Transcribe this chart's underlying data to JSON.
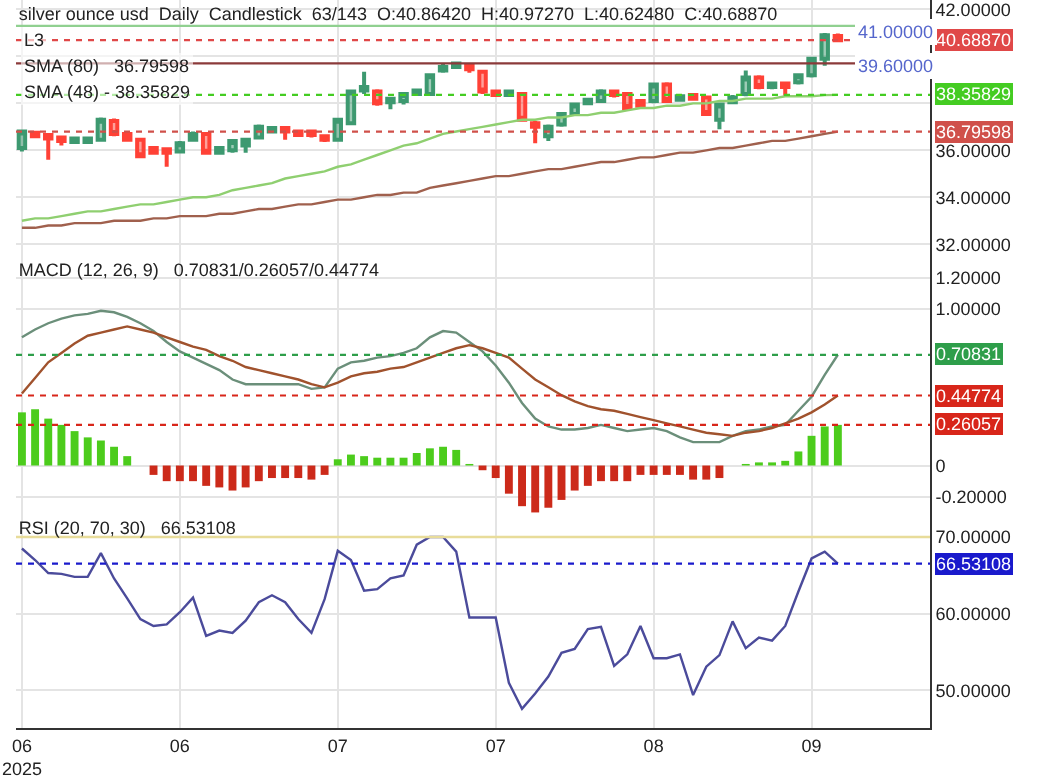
{
  "chart_data": [
    {
      "type": "candlestick",
      "title": "silver ounce usd  Daily  Candlestick  63/143  O:40.86420  H:40.97270  L:40.62480  C:40.68870",
      "categories": [
        null,
        null,
        null,
        null,
        null,
        null,
        null,
        null,
        null,
        null,
        null,
        null,
        null,
        null,
        null,
        null,
        null,
        null,
        null,
        null,
        null,
        null,
        null,
        null,
        null,
        null,
        null,
        null,
        null,
        null,
        null,
        null,
        null,
        null,
        null,
        null,
        null,
        null,
        null,
        null,
        null,
        null,
        null,
        null,
        null,
        null,
        null,
        null,
        null,
        null,
        null,
        null,
        null,
        null,
        null,
        null,
        null,
        null,
        null,
        null,
        null,
        null,
        null
      ],
      "annotations": [
        "L3",
        "SMA (80)   36.79598",
        "SMA (48) - 38.35829",
        {
          "text": "41.00000",
          "y": 41.0
        },
        {
          "text": "39.60000",
          "y": 39.6
        }
      ],
      "series": [
        {
          "ohlc": [
            [
              36.1,
              36.85,
              35.95,
              36.8
            ],
            [
              36.75,
              36.8,
              36.6,
              36.6
            ],
            [
              36.65,
              36.7,
              35.6,
              36.5
            ],
            [
              36.55,
              36.6,
              36.2,
              36.4
            ],
            [
              36.35,
              36.55,
              36.3,
              36.5
            ],
            [
              36.35,
              36.55,
              36.3,
              36.5
            ],
            [
              36.45,
              37.4,
              36.4,
              37.3
            ],
            [
              37.25,
              37.35,
              36.6,
              36.7
            ],
            [
              36.7,
              36.75,
              36.4,
              36.45
            ],
            [
              36.45,
              36.5,
              35.7,
              35.75
            ],
            [
              36.1,
              36.15,
              35.85,
              35.9
            ],
            [
              36.05,
              36.1,
              35.3,
              35.9
            ],
            [
              35.95,
              36.4,
              35.9,
              36.3
            ],
            [
              36.45,
              36.8,
              36.4,
              36.7
            ],
            [
              36.7,
              36.75,
              35.85,
              35.9
            ],
            [
              35.9,
              36.15,
              35.85,
              36.1
            ],
            [
              36.0,
              36.45,
              35.9,
              36.4
            ],
            [
              36.2,
              36.5,
              35.9,
              36.45
            ],
            [
              36.55,
              37.1,
              36.5,
              37.0
            ],
            [
              36.8,
              36.95,
              36.75,
              36.95
            ],
            [
              36.95,
              37.0,
              36.45,
              36.8
            ],
            [
              36.8,
              36.85,
              36.6,
              36.65
            ],
            [
              36.8,
              36.85,
              36.55,
              36.65
            ],
            [
              36.6,
              36.65,
              36.35,
              36.45
            ],
            [
              36.45,
              37.35,
              36.4,
              37.3
            ],
            [
              37.15,
              38.55,
              37.1,
              38.5
            ],
            [
              38.55,
              39.35,
              38.4,
              38.7
            ],
            [
              38.5,
              38.6,
              37.9,
              38.0
            ],
            [
              38.05,
              38.2,
              37.75,
              38.2
            ],
            [
              38.1,
              38.45,
              37.95,
              38.4
            ],
            [
              38.4,
              38.55,
              38.35,
              38.55
            ],
            [
              38.4,
              39.25,
              38.35,
              39.2
            ],
            [
              39.4,
              39.7,
              39.3,
              39.55
            ],
            [
              39.55,
              39.75,
              39.5,
              39.7
            ],
            [
              39.6,
              39.65,
              39.3,
              39.45
            ],
            [
              39.35,
              39.4,
              38.4,
              38.5
            ],
            [
              38.5,
              38.55,
              38.3,
              38.35
            ],
            [
              38.35,
              38.5,
              38.3,
              38.5
            ],
            [
              38.4,
              38.45,
              37.25,
              37.3
            ],
            [
              37.15,
              37.25,
              36.3,
              37.0
            ],
            [
              36.6,
              37.1,
              36.4,
              37.0
            ],
            [
              37.1,
              37.6,
              37.0,
              37.55
            ],
            [
              37.55,
              38.0,
              37.5,
              37.95
            ],
            [
              38.0,
              38.2,
              37.95,
              38.15
            ],
            [
              38.1,
              38.6,
              38.05,
              38.5
            ],
            [
              38.5,
              38.55,
              38.25,
              38.35
            ],
            [
              38.4,
              38.45,
              37.75,
              37.8
            ],
            [
              38.1,
              38.15,
              37.85,
              37.9
            ],
            [
              38.1,
              38.85,
              38.0,
              38.8
            ],
            [
              38.8,
              38.9,
              38.05,
              38.1
            ],
            [
              38.15,
              38.3,
              38.1,
              38.3
            ],
            [
              38.35,
              38.4,
              38.2,
              38.2
            ],
            [
              38.25,
              38.3,
              37.5,
              37.55
            ],
            [
              37.3,
              38.0,
              36.9,
              37.95
            ],
            [
              38.05,
              38.35,
              38.0,
              38.25
            ],
            [
              38.4,
              39.4,
              38.3,
              39.1
            ],
            [
              39.1,
              39.2,
              38.6,
              38.7
            ],
            [
              38.7,
              38.9,
              38.6,
              38.85
            ],
            [
              38.85,
              38.9,
              38.3,
              38.7
            ],
            [
              38.9,
              39.25,
              38.8,
              39.2
            ],
            [
              39.2,
              39.95,
              39.1,
              39.9
            ],
            [
              39.9,
              41.0,
              39.6,
              40.9
            ],
            [
              40.8642,
              40.9727,
              40.6248,
              40.6887
            ]
          ]
        },
        {
          "type": "line",
          "color": "#8fcf70",
          "values": [
            33.0,
            33.1,
            33.1,
            33.2,
            33.3,
            33.4,
            33.4,
            33.5,
            33.6,
            33.7,
            33.7,
            33.8,
            33.9,
            34.0,
            34.0,
            34.1,
            34.3,
            34.4,
            34.5,
            34.6,
            34.8,
            34.9,
            35.0,
            35.1,
            35.3,
            35.4,
            35.6,
            35.8,
            36.0,
            36.2,
            36.3,
            36.5,
            36.7,
            36.8,
            36.9,
            37.0,
            37.1,
            37.2,
            37.3,
            37.3,
            37.4,
            37.4,
            37.5,
            37.5,
            37.6,
            37.6,
            37.7,
            37.8,
            37.8,
            37.9,
            37.9,
            38.0,
            38.0,
            38.1,
            38.1,
            38.2,
            38.2,
            38.2,
            38.3,
            38.3,
            38.3,
            38.35,
            38.35829
          ]
        },
        {
          "type": "line",
          "color": "#a0604d",
          "values": [
            32.7,
            32.7,
            32.8,
            32.8,
            32.9,
            32.9,
            32.9,
            33.0,
            33.0,
            33.0,
            33.1,
            33.1,
            33.2,
            33.2,
            33.2,
            33.3,
            33.3,
            33.4,
            33.5,
            33.5,
            33.6,
            33.7,
            33.7,
            33.8,
            33.9,
            33.9,
            34.0,
            34.1,
            34.1,
            34.2,
            34.2,
            34.4,
            34.5,
            34.6,
            34.7,
            34.8,
            34.9,
            34.9,
            35.0,
            35.1,
            35.2,
            35.2,
            35.3,
            35.4,
            35.5,
            35.5,
            35.6,
            35.7,
            35.7,
            35.8,
            35.9,
            35.9,
            36.0,
            36.1,
            36.1,
            36.2,
            36.3,
            36.4,
            36.4,
            36.5,
            36.6,
            36.7,
            36.79598
          ]
        }
      ],
      "ref_lines": [
        {
          "axis": "y",
          "value": 41.3,
          "label": null,
          "color": "#90d090",
          "line_style": "solid"
        },
        {
          "axis": "y",
          "value": 39.7,
          "label": null,
          "color": "#8b3a3a",
          "line_style": "solid"
        },
        {
          "axis": "y",
          "value": 40.6887,
          "label": "40.68870",
          "color": "#e04848",
          "line_style": "dashed"
        },
        {
          "axis": "y",
          "value": 38.35829,
          "label": "38.35829",
          "color": "#44cc22",
          "line_style": "dashed"
        },
        {
          "axis": "y",
          "value": 36.79598,
          "label": "36.79598",
          "color": "#d0504a",
          "line_style": "dashed"
        }
      ],
      "ylim": [
        31.5,
        42.4
      ],
      "yticks": [
        {
          "value": 32,
          "label": "32.00000"
        },
        {
          "value": 34,
          "label": "34.00000"
        },
        {
          "value": 36,
          "label": "36.00000"
        },
        {
          "value": 38,
          "label": null
        },
        {
          "value": 40,
          "label": null
        },
        {
          "value": 42,
          "label": "42.00000"
        }
      ],
      "grid": true,
      "tick_labels": "y"
    },
    {
      "type": "line",
      "title": "MACD (12, 26, 9)   0.70831/0.26057/0.44774",
      "categories": [
        null,
        null,
        null,
        null,
        null,
        null,
        null,
        null,
        null,
        null,
        null,
        null,
        null,
        null,
        null,
        null,
        null,
        null,
        null,
        null,
        null,
        null,
        null,
        null,
        null,
        null,
        null,
        null,
        null,
        null,
        null,
        null,
        null,
        null,
        null,
        null,
        null,
        null,
        null,
        null,
        null,
        null,
        null,
        null,
        null,
        null,
        null,
        null,
        null,
        null,
        null,
        null,
        null,
        null,
        null,
        null,
        null,
        null,
        null,
        null,
        null,
        null,
        null
      ],
      "series": [
        {
          "type": "bar",
          "values": [
            0.34,
            0.36,
            0.3,
            0.26,
            0.22,
            0.18,
            0.16,
            0.12,
            0.06,
            null,
            -0.06,
            -0.1,
            -0.1,
            -0.1,
            -0.13,
            -0.14,
            -0.16,
            -0.14,
            -0.1,
            -0.08,
            -0.08,
            -0.08,
            -0.09,
            -0.06,
            0.04,
            0.07,
            0.06,
            0.05,
            0.05,
            0.05,
            0.08,
            0.11,
            0.12,
            0.1,
            0.01,
            -0.03,
            -0.08,
            -0.18,
            -0.26,
            -0.3,
            -0.27,
            -0.22,
            -0.16,
            -0.13,
            -0.1,
            -0.1,
            -0.1,
            -0.06,
            -0.06,
            -0.06,
            -0.06,
            -0.09,
            -0.09,
            -0.08,
            null,
            0.01,
            0.02,
            0.02,
            0.03,
            0.09,
            0.19,
            0.25,
            0.26
          ],
          "colors": [
            "#4ccc1c",
            "#4ccc1c",
            "#4ccc1c",
            "#4ccc1c",
            "#4ccc1c",
            "#4ccc1c",
            "#4ccc1c",
            "#4ccc1c",
            "#4ccc1c",
            "#4ccc1c",
            "#cc2a1a",
            "#cc2a1a",
            "#cc2a1a",
            "#cc2a1a",
            "#cc2a1a",
            "#cc2a1a",
            "#cc2a1a",
            "#cc2a1a",
            "#cc2a1a",
            "#cc2a1a",
            "#cc2a1a",
            "#cc2a1a",
            "#cc2a1a",
            "#cc2a1a",
            "#4ccc1c",
            "#4ccc1c",
            "#4ccc1c",
            "#4ccc1c",
            "#4ccc1c",
            "#4ccc1c",
            "#4ccc1c",
            "#4ccc1c",
            "#4ccc1c",
            "#4ccc1c",
            "#4ccc1c",
            "#cc2a1a",
            "#cc2a1a",
            "#cc2a1a",
            "#cc2a1a",
            "#cc2a1a",
            "#cc2a1a",
            "#cc2a1a",
            "#cc2a1a",
            "#cc2a1a",
            "#cc2a1a",
            "#cc2a1a",
            "#cc2a1a",
            "#cc2a1a",
            "#cc2a1a",
            "#cc2a1a",
            "#cc2a1a",
            "#cc2a1a",
            "#cc2a1a",
            "#cc2a1a",
            "#4ccc1c",
            "#4ccc1c",
            "#4ccc1c",
            "#4ccc1c",
            "#4ccc1c",
            "#4ccc1c",
            "#4ccc1c",
            "#4ccc1c",
            "#4ccc1c"
          ]
        },
        {
          "color": "#6b8f7a",
          "values": [
            0.82,
            0.87,
            0.91,
            0.94,
            0.96,
            0.97,
            0.99,
            0.98,
            0.95,
            0.91,
            0.86,
            0.79,
            0.73,
            0.69,
            0.65,
            0.61,
            0.55,
            0.52,
            0.52,
            0.52,
            0.52,
            0.52,
            0.49,
            0.5,
            0.62,
            0.66,
            0.67,
            0.69,
            0.7,
            0.72,
            0.75,
            0.82,
            0.86,
            0.85,
            0.79,
            0.73,
            0.64,
            0.53,
            0.4,
            0.3,
            0.25,
            0.23,
            0.23,
            0.24,
            0.26,
            0.24,
            0.22,
            0.23,
            0.24,
            0.22,
            0.18,
            0.15,
            0.15,
            0.15,
            0.19,
            0.22,
            0.23,
            0.25,
            0.26,
            0.35,
            0.44,
            0.58,
            0.70831
          ]
        },
        {
          "color": "#a0522d",
          "values": [
            0.46,
            0.56,
            0.66,
            0.72,
            0.78,
            0.83,
            0.85,
            0.87,
            0.89,
            0.87,
            0.85,
            0.82,
            0.79,
            0.76,
            0.74,
            0.7,
            0.67,
            0.63,
            0.61,
            0.59,
            0.57,
            0.55,
            0.52,
            0.5,
            0.53,
            0.57,
            0.59,
            0.6,
            0.62,
            0.63,
            0.66,
            0.69,
            0.72,
            0.75,
            0.77,
            0.75,
            0.72,
            0.69,
            0.62,
            0.55,
            0.5,
            0.45,
            0.41,
            0.38,
            0.36,
            0.35,
            0.33,
            0.31,
            0.29,
            0.27,
            0.25,
            0.23,
            0.21,
            0.2,
            0.19,
            0.21,
            0.22,
            0.24,
            0.27,
            0.3,
            0.34,
            0.39,
            0.44774
          ]
        }
      ],
      "ref_lines": [
        {
          "axis": "y",
          "value": 0.70831,
          "label": "0.70831",
          "color": "#2e9e4a",
          "line_style": "dashed"
        },
        {
          "axis": "y",
          "value": 0.44774,
          "label": "0.44774",
          "color": "#d8261a",
          "line_style": "dashed"
        },
        {
          "axis": "y",
          "value": 0.26057,
          "label": "0.26057",
          "color": "#d8261a",
          "line_style": "dashed"
        }
      ],
      "ylim": [
        -0.31,
        1.34
      ],
      "yticks": [
        {
          "value": -0.2,
          "label": "-0.20000"
        },
        0,
        {
          "value": 1,
          "label": "1.00000"
        },
        {
          "value": 1.2,
          "label": "1.20000"
        }
      ],
      "grid": true,
      "tick_labels": "y"
    },
    {
      "type": "line",
      "title": "RSI (20, 70, 30)   66.53108",
      "categories": [
        "06\n2025",
        null,
        null,
        null,
        null,
        null,
        null,
        null,
        null,
        null,
        null,
        null,
        "06",
        null,
        null,
        null,
        null,
        null,
        null,
        null,
        null,
        null,
        null,
        null,
        "07",
        null,
        null,
        null,
        null,
        null,
        null,
        null,
        null,
        null,
        null,
        null,
        "07",
        null,
        null,
        null,
        null,
        null,
        null,
        null,
        null,
        null,
        null,
        null,
        "08",
        null,
        null,
        null,
        null,
        null,
        null,
        null,
        null,
        null,
        null,
        null,
        "09",
        null,
        null
      ],
      "series": [
        {
          "color": "#4b4b9b",
          "values": [
            68.5,
            67.0,
            65.3,
            65.2,
            64.8,
            64.8,
            67.9,
            64.6,
            62.0,
            59.3,
            58.4,
            58.6,
            60.2,
            62.1,
            57.1,
            57.8,
            57.5,
            59.1,
            61.5,
            62.4,
            61.5,
            59.3,
            57.5,
            61.9,
            68.2,
            67.0,
            63.0,
            63.2,
            64.6,
            65.0,
            69.0,
            70.0,
            70.0,
            68.1,
            59.5,
            59.5,
            59.5,
            51.0,
            47.6,
            49.6,
            51.8,
            54.9,
            55.4,
            58.0,
            58.3,
            53.2,
            54.7,
            58.4,
            54.2,
            54.2,
            54.7,
            49.4,
            53.1,
            54.6,
            59.0,
            55.5,
            56.9,
            56.5,
            58.4,
            62.9,
            67.2,
            68.1,
            66.53108
          ]
        }
      ],
      "ref_lines": [
        {
          "axis": "y",
          "value": 70,
          "label": null,
          "color": "#e8dc9a",
          "line_style": "solid"
        },
        {
          "axis": "y",
          "value": 66.53108,
          "label": "66.53108",
          "color": "#1a1acc",
          "line_style": "dashed"
        }
      ],
      "ylim": [
        45.1,
        73
      ],
      "yticks": [
        {
          "value": 50,
          "label": "50.00000"
        },
        {
          "value": 60,
          "label": "60.00000"
        },
        {
          "value": 70,
          "label": "70.00000"
        }
      ],
      "grid": true
    }
  ]
}
